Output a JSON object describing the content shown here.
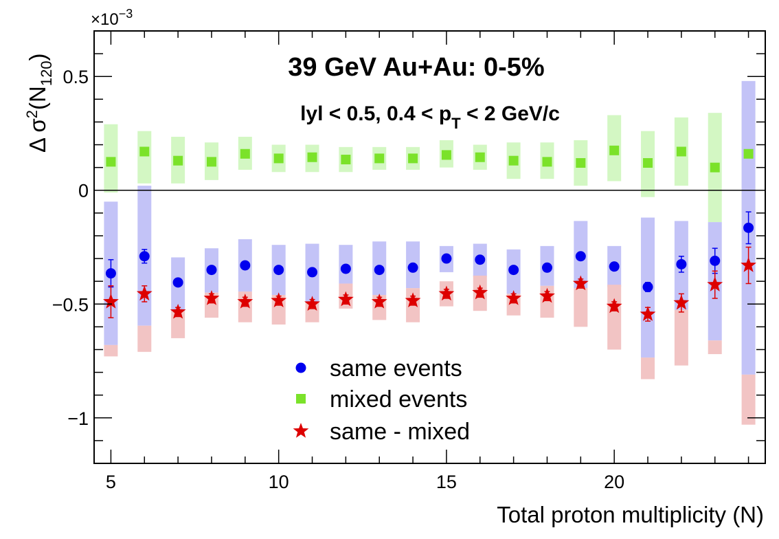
{
  "chart_data": {
    "type": "scatter",
    "title": "39 GeV Au+Au: 0-5%",
    "subtitle": {
      "prefix": "lyl < 0.5, 0.4 < p",
      "sub": "T",
      "suffix": " < 2 GeV/c"
    },
    "xlabel": "Total proton multiplicity (N)",
    "ylabel": {
      "main": "Δ σ",
      "sup": "2",
      "open": "(N",
      "sub": "120",
      "close": ")"
    },
    "y_exponent": "×10",
    "y_exponent_power": "−3",
    "xlim": [
      4.5,
      24.5
    ],
    "ylim": [
      -1.2,
      0.7
    ],
    "x_ticks": [
      {
        "value": 5,
        "label": "5"
      },
      {
        "value": 10,
        "label": "10"
      },
      {
        "value": 15,
        "label": "15"
      },
      {
        "value": 20,
        "label": "20"
      }
    ],
    "y_ticks": [
      {
        "value": 0.5,
        "label": "0.5"
      },
      {
        "value": 0,
        "label": "0"
      },
      {
        "value": -0.5,
        "label": "−0.5"
      },
      {
        "value": -1,
        "label": "−1"
      }
    ],
    "zero_line": true,
    "grid": false,
    "legend_position": "lower-center",
    "x": [
      5,
      6,
      7,
      8,
      9,
      10,
      11,
      12,
      13,
      14,
      15,
      16,
      17,
      18,
      19,
      20,
      21,
      22,
      23,
      24
    ],
    "series": [
      {
        "name": "same events",
        "marker": "circle",
        "color": "#0000ee",
        "band_color": "#c3c3f7",
        "y": [
          -0.365,
          -0.29,
          -0.405,
          -0.35,
          -0.33,
          -0.35,
          -0.36,
          -0.345,
          -0.35,
          -0.34,
          -0.3,
          -0.305,
          -0.35,
          -0.34,
          -0.29,
          -0.335,
          -0.425,
          -0.325,
          -0.31,
          -0.165
        ],
        "stat_err": [
          0.06,
          0.03,
          0.015,
          0.015,
          0.015,
          0.015,
          0.015,
          0.015,
          0.015,
          0.015,
          0.015,
          0.015,
          0.015,
          0.015,
          0.015,
          0.015,
          0.02,
          0.035,
          0.055,
          0.07
        ],
        "sys_lo": [
          -0.68,
          -0.595,
          -0.535,
          -0.45,
          -0.445,
          -0.46,
          -0.49,
          -0.41,
          -0.46,
          -0.43,
          -0.36,
          -0.38,
          -0.455,
          -0.42,
          -0.43,
          -0.425,
          -0.735,
          -0.525,
          -0.66,
          -0.81
        ],
        "sys_hi": [
          -0.05,
          0.02,
          -0.295,
          -0.255,
          -0.215,
          -0.24,
          -0.235,
          -0.24,
          -0.225,
          -0.225,
          -0.245,
          -0.235,
          -0.26,
          -0.245,
          -0.135,
          -0.245,
          -0.12,
          -0.135,
          -0.14,
          0.48
        ]
      },
      {
        "name": "mixed events",
        "marker": "square",
        "color": "#7be22a",
        "band_color": "#d3f7c3",
        "y": [
          0.125,
          0.17,
          0.13,
          0.125,
          0.16,
          0.14,
          0.145,
          0.135,
          0.14,
          0.14,
          0.155,
          0.145,
          0.13,
          0.125,
          0.12,
          0.175,
          0.12,
          0.17,
          0.1,
          0.16
        ],
        "stat_err": [
          0,
          0,
          0,
          0,
          0,
          0,
          0,
          0,
          0,
          0,
          0,
          0,
          0,
          0,
          0,
          0,
          0,
          0,
          0,
          0
        ],
        "sys_lo": [
          -0.01,
          0.03,
          0.03,
          0.045,
          0.09,
          0.08,
          0.08,
          0.08,
          0.09,
          0.09,
          0.1,
          0.09,
          0.05,
          0.05,
          0.02,
          0.04,
          -0.03,
          0.02,
          -0.14,
          -0.1
        ],
        "sys_hi": [
          0.29,
          0.26,
          0.235,
          0.21,
          0.235,
          0.2,
          0.2,
          0.19,
          0.19,
          0.19,
          0.22,
          0.2,
          0.21,
          0.21,
          0.22,
          0.33,
          0.26,
          0.32,
          0.34,
          0.36
        ]
      },
      {
        "name": "same - mixed",
        "marker": "star",
        "color": "#dd0000",
        "band_color": "#f2c4c4",
        "y": [
          -0.49,
          -0.455,
          -0.535,
          -0.475,
          -0.49,
          -0.485,
          -0.5,
          -0.48,
          -0.49,
          -0.485,
          -0.455,
          -0.45,
          -0.475,
          -0.465,
          -0.41,
          -0.51,
          -0.545,
          -0.495,
          -0.415,
          -0.33
        ],
        "stat_err": [
          0.07,
          0.035,
          0.02,
          0.02,
          0.02,
          0.02,
          0.02,
          0.02,
          0.02,
          0.02,
          0.02,
          0.02,
          0.02,
          0.02,
          0.02,
          0.02,
          0.03,
          0.04,
          0.06,
          0.08
        ],
        "sys_lo": [
          -0.73,
          -0.71,
          -0.65,
          -0.56,
          -0.58,
          -0.59,
          -0.58,
          -0.52,
          -0.57,
          -0.58,
          -0.51,
          -0.53,
          -0.55,
          -0.56,
          -0.6,
          -0.7,
          -0.83,
          -0.77,
          -0.72,
          -1.03
        ],
        "sys_hi": [
          -0.68,
          -0.595,
          -0.53,
          -0.45,
          -0.445,
          -0.46,
          -0.49,
          -0.41,
          -0.46,
          -0.43,
          -0.4,
          -0.375,
          -0.455,
          -0.42,
          -0.43,
          -0.415,
          -0.735,
          -0.525,
          -0.66,
          -0.81
        ]
      }
    ]
  }
}
